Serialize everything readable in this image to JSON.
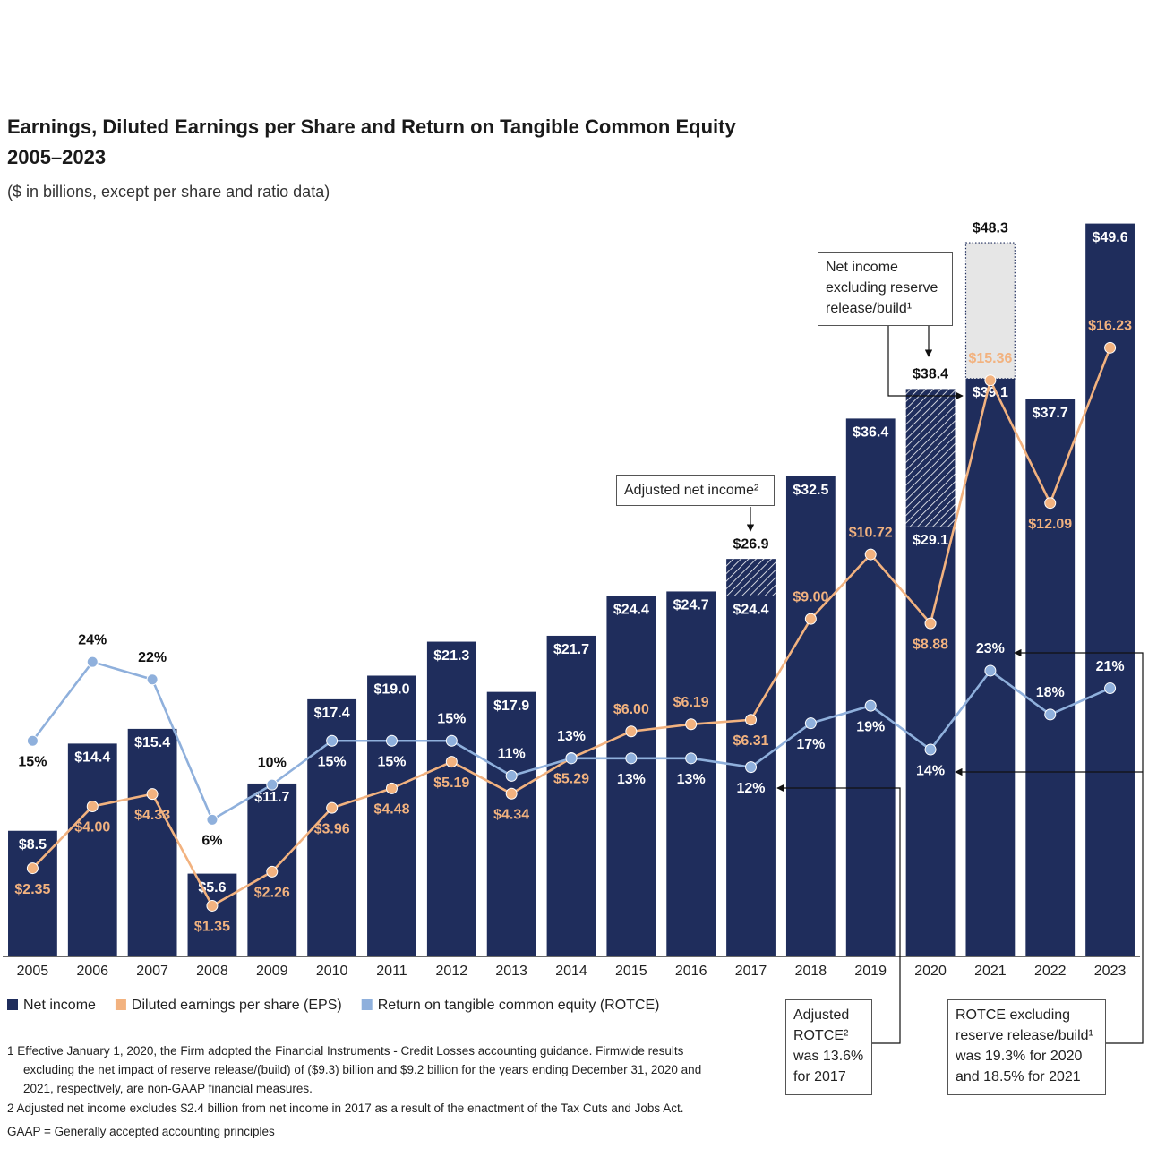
{
  "chart_data": {
    "type": "bar",
    "title": "Earnings, Diluted Earnings per Share and Return on Tangible Common Equity",
    "subtitle": "2005–2023",
    "note": "($ in billions, except per share and ratio data)",
    "categories": [
      "2005",
      "2006",
      "2007",
      "2008",
      "2009",
      "2010",
      "2011",
      "2012",
      "2013",
      "2014",
      "2015",
      "2016",
      "2017",
      "2018",
      "2019",
      "2020",
      "2021",
      "2022",
      "2023"
    ],
    "ylim": [
      0,
      50
    ],
    "y2lim": [
      0,
      19.7
    ],
    "y3lim": [
      -9.6,
      74.7
    ],
    "series": [
      {
        "name": "Net income",
        "color": "#1f2d5c",
        "values": [
          8.5,
          14.4,
          15.4,
          5.6,
          11.7,
          17.4,
          19.0,
          21.3,
          17.9,
          21.7,
          24.4,
          24.7,
          24.4,
          32.5,
          36.4,
          29.1,
          48.3,
          37.7,
          49.6
        ],
        "value_labels": [
          "$8.5",
          "$14.4",
          "$15.4",
          "$5.6",
          "$11.7",
          "$17.4",
          "$19.0",
          "$21.3",
          "$17.9",
          "$21.7",
          "$24.4",
          "$24.7",
          "$24.4",
          "$32.5",
          "$36.4",
          "$29.1",
          "$48.3",
          "$37.7",
          "$49.6"
        ]
      },
      {
        "name": "Diluted earnings per share (EPS)",
        "color": "#f2b27f",
        "axis": "y2",
        "values": [
          2.35,
          4.0,
          4.33,
          1.35,
          2.26,
          3.96,
          4.48,
          5.19,
          4.34,
          5.29,
          6.0,
          6.19,
          6.31,
          9.0,
          10.72,
          8.88,
          15.36,
          12.09,
          16.23
        ],
        "value_labels": [
          "$2.35",
          "$4.00",
          "$4.33",
          "$1.35",
          "$2.26",
          "$3.96",
          "$4.48",
          "$5.19",
          "$4.34",
          "$5.29",
          "$6.00",
          "$6.19",
          "$6.31",
          "$9.00",
          "$10.72",
          "$8.88",
          "$15.36",
          "$12.09",
          "$16.23"
        ]
      },
      {
        "name": "Return on tangible common equity (ROTCE)",
        "color": "#8fb0dc",
        "axis": "y3",
        "values": [
          15,
          24,
          22,
          6,
          10,
          15,
          15,
          15,
          11,
          13,
          13,
          13,
          12,
          17,
          19,
          14,
          23,
          18,
          21
        ],
        "value_labels": [
          "15%",
          "24%",
          "22%",
          "6%",
          "10%",
          "15%",
          "15%",
          "15%",
          "11%",
          "13%",
          "13%",
          "13%",
          "12%",
          "17%",
          "19%",
          "14%",
          "23%",
          "18%",
          "21%"
        ]
      }
    ],
    "adjusted": {
      "values": [
        null,
        null,
        null,
        null,
        null,
        null,
        null,
        null,
        null,
        null,
        null,
        null,
        26.9,
        null,
        null,
        38.4,
        39.1,
        null,
        null
      ],
      "value_labels": [
        null,
        null,
        null,
        null,
        null,
        null,
        null,
        null,
        null,
        null,
        null,
        null,
        "$26.9",
        null,
        null,
        "$38.4",
        "$39.1",
        null,
        null
      ]
    },
    "annotations": [
      "Adjusted net income²",
      "Net income excluding reserve release/build¹",
      "Adjusted ROTCE² was 13.6% for 2017",
      "ROTCE excluding reserve release/build¹ was 19.3% for 2020 and 18.5% for 2021"
    ],
    "footnotes": [
      "1   Effective January 1, 2020, the Firm adopted the Financial Instruments - Credit Losses accounting guidance. Firmwide results excluding the net impact of reserve release/(build) of ($9.3) billion and $9.2 billion for the years ending December 31, 2020 and 2021, respectively, are non-GAAP financial measures.",
      "2   Adjusted net income excludes $2.4 billion from net income in 2017 as a result of the enactment of the Tax Cuts and Jobs Act.",
      "GAAP = Generally accepted accounting principles"
    ]
  }
}
